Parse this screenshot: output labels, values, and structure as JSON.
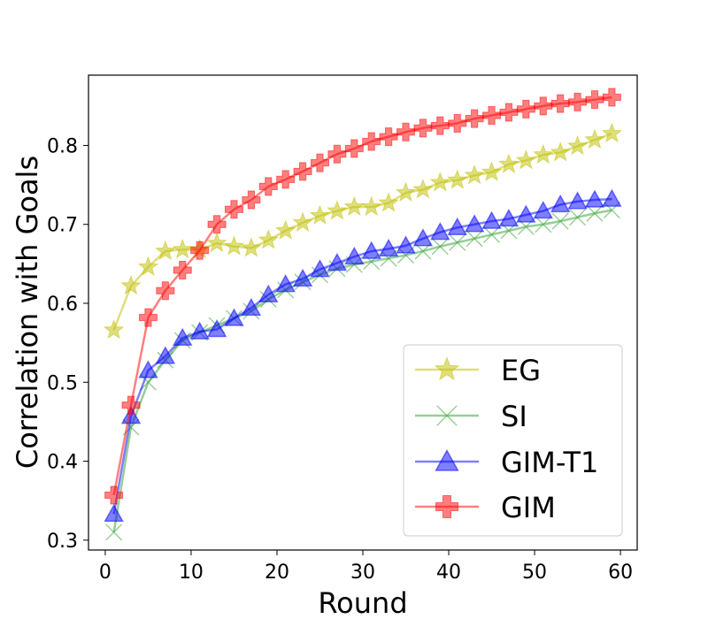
{
  "chart_data": {
    "type": "line",
    "title": "",
    "xlabel": "Round",
    "ylabel": "Correlation with Goals",
    "xlim": [
      -1.95,
      61.95
    ],
    "ylim": [
      0.2875,
      0.889
    ],
    "xticks": [
      0,
      10,
      20,
      30,
      40,
      50,
      60
    ],
    "yticks": [
      0.3,
      0.4,
      0.5,
      0.6,
      0.7,
      0.8
    ],
    "ytick_labels": [
      "0.3",
      "0.4",
      "0.5",
      "0.6",
      "0.7",
      "0.8"
    ],
    "grid": false,
    "legend_position": "lower-right",
    "x": [
      1,
      3,
      5,
      7,
      9,
      11,
      13,
      15,
      17,
      19,
      21,
      23,
      25,
      27,
      29,
      31,
      33,
      35,
      37,
      39,
      41,
      43,
      45,
      47,
      49,
      51,
      53,
      55,
      57,
      59
    ],
    "series": [
      {
        "name": "EG",
        "color": "#bfbf00",
        "marker": "star",
        "values": [
          0.566,
          0.622,
          0.646,
          0.666,
          0.668,
          0.668,
          0.676,
          0.672,
          0.67,
          0.68,
          0.692,
          0.702,
          0.711,
          0.717,
          0.722,
          0.722,
          0.727,
          0.74,
          0.744,
          0.753,
          0.756,
          0.762,
          0.766,
          0.776,
          0.781,
          0.788,
          0.791,
          0.799,
          0.807,
          0.815
        ]
      },
      {
        "name": "SI",
        "color": "#2ca02c",
        "marker": "x",
        "values": [
          0.31,
          0.443,
          0.5,
          0.528,
          0.553,
          0.563,
          0.572,
          0.581,
          0.59,
          0.605,
          0.617,
          0.627,
          0.636,
          0.644,
          0.649,
          0.653,
          0.657,
          0.661,
          0.666,
          0.672,
          0.677,
          0.682,
          0.687,
          0.692,
          0.697,
          0.7,
          0.704,
          0.709,
          0.714,
          0.718
        ]
      },
      {
        "name": "GIM-T1",
        "color": "#0000ff",
        "marker": "triangle",
        "values": [
          0.333,
          0.457,
          0.515,
          0.533,
          0.556,
          0.564,
          0.567,
          0.581,
          0.594,
          0.611,
          0.624,
          0.631,
          0.643,
          0.651,
          0.659,
          0.666,
          0.669,
          0.673,
          0.682,
          0.69,
          0.696,
          0.7,
          0.704,
          0.707,
          0.712,
          0.717,
          0.725,
          0.729,
          0.731,
          0.732
        ]
      },
      {
        "name": "GIM",
        "color": "#ff0000",
        "marker": "plus",
        "values": [
          0.357,
          0.471,
          0.582,
          0.616,
          0.642,
          0.667,
          0.7,
          0.719,
          0.731,
          0.748,
          0.757,
          0.767,
          0.778,
          0.789,
          0.796,
          0.805,
          0.811,
          0.817,
          0.822,
          0.825,
          0.828,
          0.834,
          0.838,
          0.842,
          0.846,
          0.85,
          0.853,
          0.855,
          0.858,
          0.861
        ]
      }
    ]
  }
}
